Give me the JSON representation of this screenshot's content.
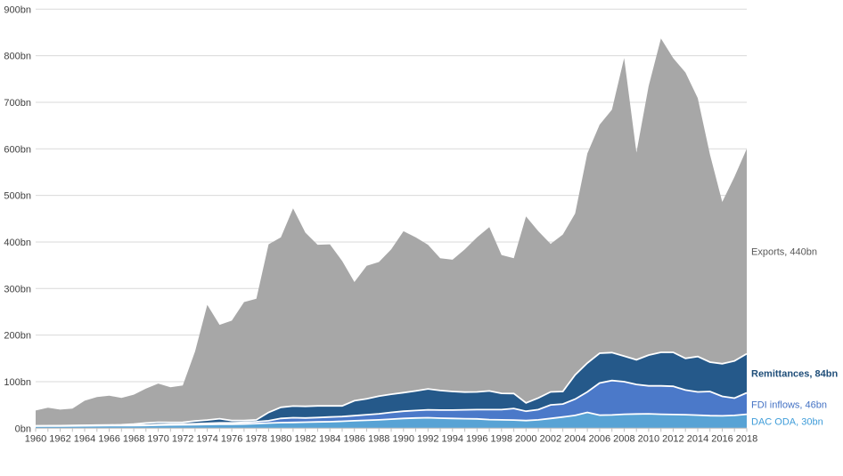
{
  "chart_data": {
    "type": "area",
    "stacked": true,
    "title": "",
    "xlabel": "",
    "ylabel": "",
    "ylim": [
      0,
      900
    ],
    "grid": true,
    "legend_position": "end-of-series-labels-right",
    "y_tick_labels": [
      "0bn",
      "100bn",
      "200bn",
      "300bn",
      "400bn",
      "500bn",
      "600bn",
      "700bn",
      "800bn",
      "900bn"
    ],
    "x_tick_labels": [
      "1960",
      "1962",
      "1964",
      "1966",
      "1968",
      "1970",
      "1972",
      "1974",
      "1976",
      "1978",
      "1980",
      "1982",
      "1984",
      "1986",
      "1988",
      "1990",
      "1992",
      "1994",
      "1996",
      "1998",
      "2000",
      "2002",
      "2004",
      "2006",
      "2008",
      "2010",
      "2012",
      "2014",
      "2016",
      "2018"
    ],
    "years": [
      1960,
      1961,
      1962,
      1963,
      1964,
      1965,
      1966,
      1967,
      1968,
      1969,
      1970,
      1971,
      1972,
      1973,
      1974,
      1975,
      1976,
      1977,
      1978,
      1979,
      1980,
      1981,
      1982,
      1983,
      1984,
      1985,
      1986,
      1987,
      1988,
      1989,
      1990,
      1991,
      1992,
      1993,
      1994,
      1995,
      1996,
      1997,
      1998,
      1999,
      2000,
      2001,
      2002,
      2003,
      2004,
      2005,
      2006,
      2007,
      2008,
      2009,
      2010,
      2011,
      2012,
      2013,
      2014,
      2015,
      2016,
      2017,
      2018
    ],
    "series": [
      {
        "name": "DAC ODA",
        "end_label": "DAC ODA, 30bn",
        "end_value": "30bn",
        "color": "#58A3D5",
        "label_color": "#3E9CD9",
        "values": [
          4.5,
          4.7,
          4.8,
          5.0,
          5.2,
          5.3,
          5.5,
          5.6,
          5.8,
          6.0,
          6.5,
          7.0,
          7.2,
          7.5,
          8.0,
          8.5,
          8.5,
          9.0,
          10.0,
          11.0,
          12.0,
          12.5,
          13.0,
          13.5,
          14.0,
          15.0,
          16.0,
          17.0,
          18.0,
          19.5,
          21.0,
          22.0,
          22.5,
          21.5,
          21.0,
          20.5,
          20.0,
          18.5,
          18.0,
          17.5,
          16.5,
          18.0,
          21.0,
          24.0,
          27.5,
          34.0,
          28.0,
          28.5,
          30.0,
          30.5,
          31.0,
          30.0,
          29.5,
          29.0,
          28.0,
          27.0,
          26.5,
          27.5,
          30.0
        ]
      },
      {
        "name": "FDI inflows",
        "end_label": "FDI inflows, 46bn",
        "end_value": "46bn",
        "color": "#4B79C9",
        "label_color": "#4472C4",
        "values": [
          0.5,
          0.5,
          0.5,
          0.6,
          0.7,
          0.8,
          0.8,
          0.9,
          1.0,
          1.2,
          1.3,
          1.5,
          1.5,
          2.0,
          2.5,
          3.0,
          3.0,
          3.5,
          4.0,
          5.0,
          9.0,
          10.0,
          9.0,
          9.5,
          10.0,
          10.0,
          11.0,
          12.0,
          13.0,
          14.5,
          15.5,
          16.0,
          17.0,
          17.5,
          18.0,
          19.0,
          20.0,
          21.5,
          22.0,
          25.0,
          20.0,
          22.0,
          29.0,
          28.0,
          35.0,
          44.0,
          69.0,
          74.0,
          70.0,
          63.5,
          60.0,
          61.0,
          60.5,
          53.0,
          50.0,
          52.0,
          42.0,
          37.0,
          46.0
        ]
      },
      {
        "name": "Remittances",
        "end_label": "Remittances, 84bn",
        "end_value": "84bn",
        "color": "#25598A",
        "label_color": "#1F4E79",
        "values": [
          0.2,
          0.2,
          0.3,
          0.3,
          0.4,
          0.5,
          0.6,
          1.0,
          2.0,
          4.0,
          5.0,
          4.0,
          4.0,
          6.0,
          7.0,
          9.0,
          5.0,
          4.0,
          4.0,
          18.0,
          24.0,
          25.0,
          25.0,
          25.0,
          24.0,
          23.0,
          32.0,
          34.0,
          38.0,
          39.0,
          40.0,
          42.0,
          45.0,
          42.0,
          40.0,
          38.0,
          38.0,
          40.0,
          35.0,
          32.0,
          18.0,
          25.0,
          28.0,
          27.0,
          52.0,
          62.0,
          64.0,
          60.0,
          55.0,
          53.0,
          66.0,
          72.0,
          73.0,
          68.0,
          76.0,
          63.0,
          70.0,
          80.0,
          84.0
        ]
      },
      {
        "name": "Exports",
        "end_label": "Exports, 440bn",
        "end_value": "440bn",
        "color": "#A7A7A7",
        "label_color": "#595959",
        "values": [
          32.8,
          38.6,
          34.4,
          36.1,
          52.7,
          60.4,
          63.1,
          57.5,
          63.2,
          73.8,
          83.2,
          75.5,
          79.3,
          149.5,
          247.5,
          201.5,
          214.5,
          254.5,
          260,
          361,
          365,
          424.5,
          373,
          346,
          347,
          311,
          255,
          286,
          288,
          311,
          346.5,
          330,
          309.5,
          284,
          283,
          306.5,
          332,
          352,
          297,
          290.5,
          400.5,
          358,
          318,
          337,
          346.5,
          450,
          491,
          521.5,
          640,
          445,
          578,
          674,
          632,
          614,
          555,
          446,
          347.5,
          395.5,
          440
        ]
      }
    ],
    "colors": {
      "gridline": "#D9D9D9",
      "axis_line": "#BFBFBF",
      "tick": "#BFBFBF",
      "axis_text": "#404040",
      "separator": "#FFFFFF",
      "background": "#FFFFFF"
    }
  }
}
